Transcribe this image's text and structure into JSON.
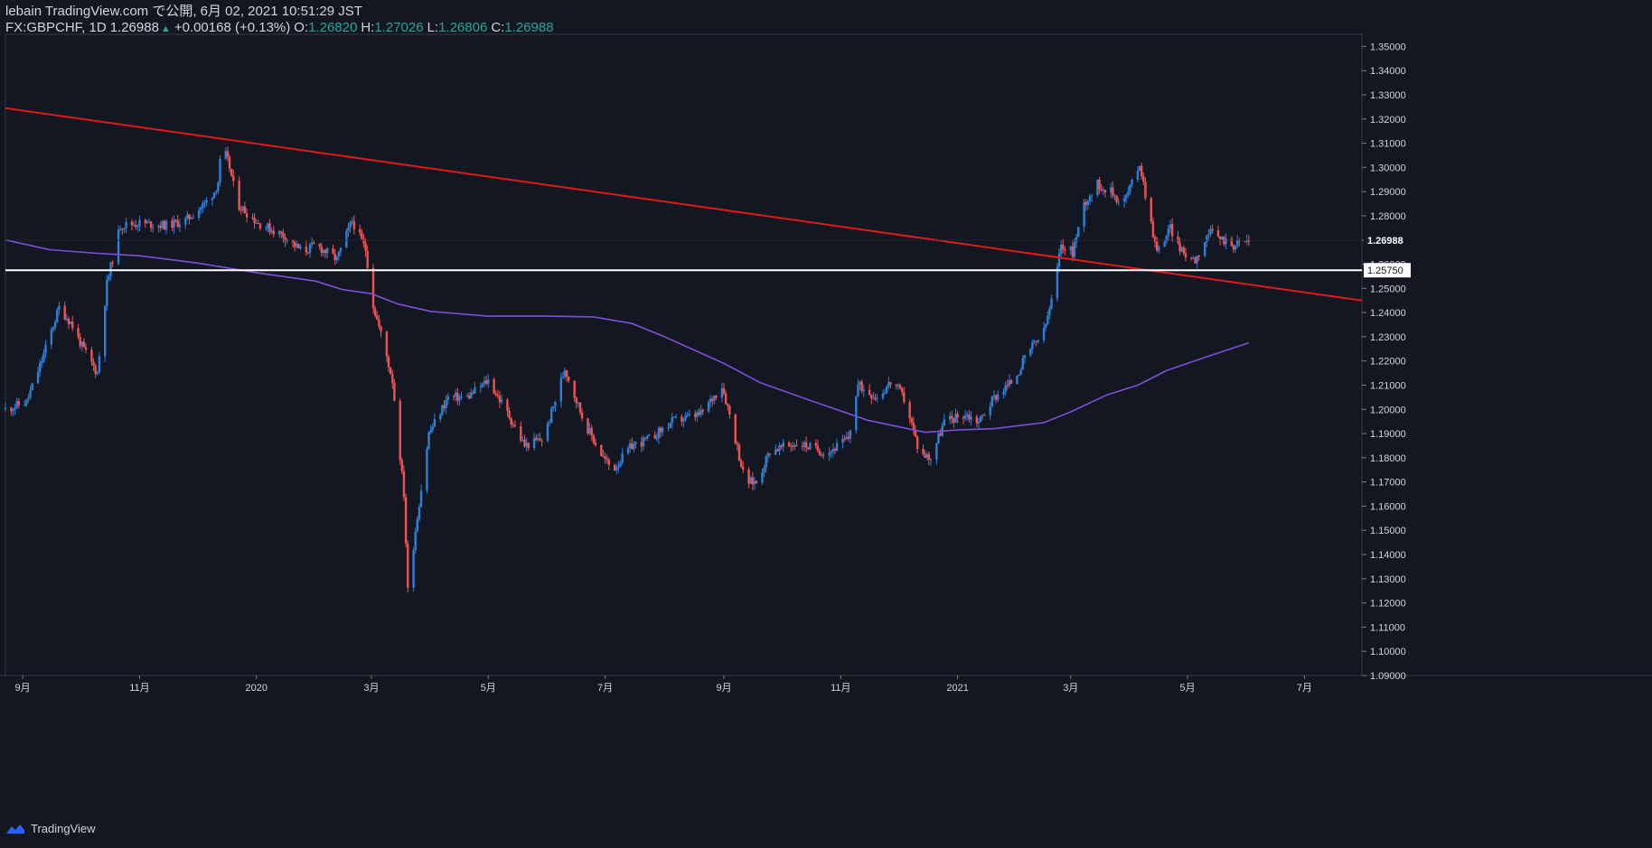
{
  "header": {
    "line1": "lebain TradingView.com で公開, 6月 02, 2021 10:51:29 JST",
    "symbol": "FX:GBPCHF, 1D",
    "last": "1.26988",
    "change": "+0.00168 (+0.13%)",
    "o_label": "O:",
    "o_val": "1.26820",
    "h_label": "H:",
    "h_val": "1.27026",
    "l_label": "L:",
    "l_val": "1.26806",
    "c_label": "C:",
    "c_val": "1.26988"
  },
  "footer": {
    "brand": "TradingView"
  },
  "colors": {
    "background": "#131722",
    "up": "#2f7fd6",
    "down": "#ef5350",
    "trendline": "#e01a1a",
    "ma": "#7e4fd6",
    "hline": "#ffffff",
    "text": "#d1d4dc",
    "teal": "#26a69a"
  },
  "chart_data": {
    "type": "candlestick",
    "symbol": "FX:GBPCHF",
    "interval": "1D",
    "ylim": [
      1.09,
      1.355
    ],
    "y_ticks": [
      "1.09000",
      "1.10000",
      "1.11000",
      "1.12000",
      "1.13000",
      "1.14000",
      "1.15000",
      "1.16000",
      "1.17000",
      "1.18000",
      "1.19000",
      "1.20000",
      "1.21000",
      "1.22000",
      "1.23000",
      "1.24000",
      "1.25000",
      "1.26000",
      "1.27000",
      "1.28000",
      "1.29000",
      "1.30000",
      "1.31000",
      "1.32000",
      "1.33000",
      "1.34000",
      "1.35000"
    ],
    "x_range": [
      "2019-08-23",
      "2021-07-31"
    ],
    "x_ticks": [
      {
        "date": "2019-09-01",
        "label": "9月"
      },
      {
        "date": "2019-11-01",
        "label": "11月"
      },
      {
        "date": "2020-01-01",
        "label": "2020"
      },
      {
        "date": "2020-03-01",
        "label": "3月"
      },
      {
        "date": "2020-05-01",
        "label": "5月"
      },
      {
        "date": "2020-07-01",
        "label": "7月"
      },
      {
        "date": "2020-09-01",
        "label": "9月"
      },
      {
        "date": "2020-11-01",
        "label": "11月"
      },
      {
        "date": "2021-01-01",
        "label": "2021"
      },
      {
        "date": "2021-03-01",
        "label": "3月"
      },
      {
        "date": "2021-05-01",
        "label": "5月"
      },
      {
        "date": "2021-07-01",
        "label": "7月"
      }
    ],
    "price_path": [
      [
        "2019-08-23",
        1.2
      ],
      [
        "2019-09-03",
        1.203
      ],
      [
        "2019-09-10",
        1.218
      ],
      [
        "2019-09-20",
        1.242
      ],
      [
        "2019-09-26",
        1.236
      ],
      [
        "2019-10-02",
        1.226
      ],
      [
        "2019-10-10",
        1.215
      ],
      [
        "2019-10-15",
        1.252
      ],
      [
        "2019-10-22",
        1.276
      ],
      [
        "2019-11-01",
        1.277
      ],
      [
        "2019-11-15",
        1.276
      ],
      [
        "2019-11-25",
        1.278
      ],
      [
        "2019-12-05",
        1.285
      ],
      [
        "2019-12-10",
        1.29
      ],
      [
        "2019-12-12",
        1.294
      ],
      [
        "2019-12-14",
        1.31
      ],
      [
        "2019-12-18",
        1.3
      ],
      [
        "2019-12-22",
        1.285
      ],
      [
        "2020-01-02",
        1.277
      ],
      [
        "2020-01-15",
        1.272
      ],
      [
        "2020-01-25",
        1.265
      ],
      [
        "2020-02-01",
        1.268
      ],
      [
        "2020-02-12",
        1.262
      ],
      [
        "2020-02-20",
        1.278
      ],
      [
        "2020-02-27",
        1.266
      ],
      [
        "2020-03-02",
        1.243
      ],
      [
        "2020-03-08",
        1.225
      ],
      [
        "2020-03-12",
        1.212
      ],
      [
        "2020-03-18",
        1.165
      ],
      [
        "2020-03-20",
        1.125
      ],
      [
        "2020-03-24",
        1.15
      ],
      [
        "2020-03-31",
        1.19
      ],
      [
        "2020-04-10",
        1.205
      ],
      [
        "2020-04-20",
        1.205
      ],
      [
        "2020-05-01",
        1.212
      ],
      [
        "2020-05-10",
        1.2
      ],
      [
        "2020-05-20",
        1.185
      ],
      [
        "2020-05-30",
        1.188
      ],
      [
        "2020-06-10",
        1.217
      ],
      [
        "2020-06-20",
        1.195
      ],
      [
        "2020-06-30",
        1.18
      ],
      [
        "2020-07-05",
        1.175
      ],
      [
        "2020-07-15",
        1.185
      ],
      [
        "2020-07-25",
        1.188
      ],
      [
        "2020-08-05",
        1.195
      ],
      [
        "2020-08-20",
        1.198
      ],
      [
        "2020-08-31",
        1.21
      ],
      [
        "2020-09-05",
        1.195
      ],
      [
        "2020-09-12",
        1.17
      ],
      [
        "2020-09-18",
        1.17
      ],
      [
        "2020-09-25",
        1.183
      ],
      [
        "2020-10-10",
        1.186
      ],
      [
        "2020-10-25",
        1.182
      ],
      [
        "2020-11-05",
        1.188
      ],
      [
        "2020-11-10",
        1.21
      ],
      [
        "2020-11-20",
        1.205
      ],
      [
        "2020-11-28",
        1.212
      ],
      [
        "2020-12-05",
        1.203
      ],
      [
        "2020-12-12",
        1.182
      ],
      [
        "2020-12-18",
        1.18
      ],
      [
        "2020-12-25",
        1.195
      ],
      [
        "2021-01-05",
        1.198
      ],
      [
        "2021-01-12",
        1.195
      ],
      [
        "2021-01-20",
        1.205
      ],
      [
        "2021-01-30",
        1.212
      ],
      [
        "2021-02-08",
        1.225
      ],
      [
        "2021-02-15",
        1.232
      ],
      [
        "2021-02-20",
        1.248
      ],
      [
        "2021-02-24",
        1.268
      ],
      [
        "2021-03-02",
        1.265
      ],
      [
        "2021-03-08",
        1.285
      ],
      [
        "2021-03-15",
        1.293
      ],
      [
        "2021-03-22",
        1.29
      ],
      [
        "2021-03-28",
        1.285
      ],
      [
        "2021-04-03",
        1.295
      ],
      [
        "2021-04-06",
        1.302
      ],
      [
        "2021-04-10",
        1.285
      ],
      [
        "2021-04-15",
        1.265
      ],
      [
        "2021-04-22",
        1.275
      ],
      [
        "2021-04-28",
        1.265
      ],
      [
        "2021-05-05",
        1.262
      ],
      [
        "2021-05-12",
        1.273
      ],
      [
        "2021-05-20",
        1.27
      ],
      [
        "2021-05-25",
        1.268
      ],
      [
        "2021-06-02",
        1.2699
      ]
    ],
    "moving_average": [
      [
        "2019-08-23",
        1.27
      ],
      [
        "2019-09-15",
        1.266
      ],
      [
        "2019-10-10",
        1.2645
      ],
      [
        "2019-11-01",
        1.2635
      ],
      [
        "2019-12-01",
        1.2605
      ],
      [
        "2020-01-01",
        1.2565
      ],
      [
        "2020-02-01",
        1.253
      ],
      [
        "2020-02-15",
        1.2495
      ],
      [
        "2020-03-01",
        1.2478
      ],
      [
        "2020-03-15",
        1.2435
      ],
      [
        "2020-04-01",
        1.2405
      ],
      [
        "2020-05-01",
        1.2385
      ],
      [
        "2020-06-01",
        1.2385
      ],
      [
        "2020-06-25",
        1.2382
      ],
      [
        "2020-07-15",
        1.2355
      ],
      [
        "2020-08-01",
        1.23
      ],
      [
        "2020-09-01",
        1.219
      ],
      [
        "2020-09-20",
        1.211
      ],
      [
        "2020-10-15",
        1.204
      ],
      [
        "2020-11-15",
        1.1955
      ],
      [
        "2020-12-15",
        1.1905
      ],
      [
        "2021-01-01",
        1.1915
      ],
      [
        "2021-01-20",
        1.192
      ],
      [
        "2021-02-15",
        1.1945
      ],
      [
        "2021-03-01",
        1.199
      ],
      [
        "2021-03-20",
        1.206
      ],
      [
        "2021-04-05",
        1.21
      ],
      [
        "2021-04-20",
        1.216
      ],
      [
        "2021-05-10",
        1.2215
      ],
      [
        "2021-06-02",
        1.2275
      ]
    ],
    "trendline": {
      "from": [
        "2019-08-23",
        1.3245
      ],
      "to": [
        "2021-07-31",
        1.245
      ],
      "color": "#e01a1a"
    },
    "horizontal_line": {
      "price": 1.2575,
      "label": "1.25750",
      "color": "#ffffff"
    },
    "last_price": {
      "price": 1.26988,
      "label": "1.26988"
    }
  }
}
